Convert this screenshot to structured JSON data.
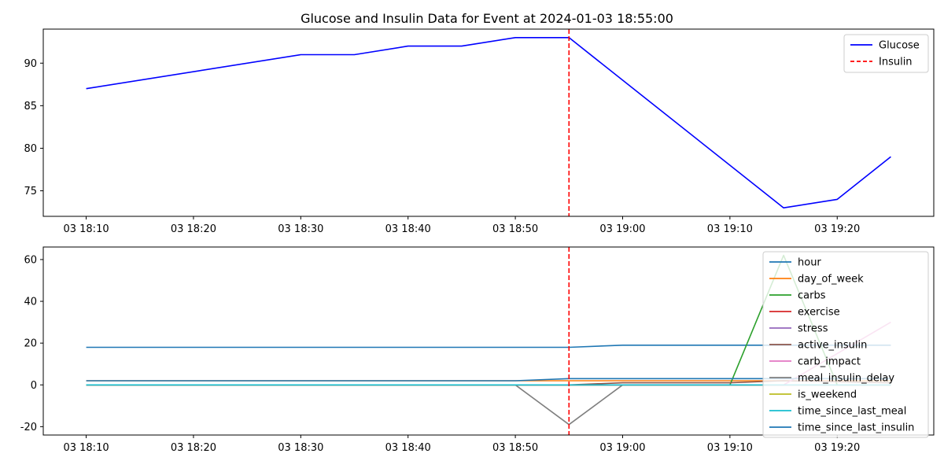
{
  "chart_data": [
    {
      "type": "line",
      "title": "Glucose and Insulin Data for Event at 2024-01-03 18:55:00",
      "xlabel": "",
      "ylabel": "",
      "x": [
        "18:10",
        "18:15",
        "18:20",
        "18:25",
        "18:30",
        "18:35",
        "18:40",
        "18:45",
        "18:50",
        "18:55",
        "19:00",
        "19:05",
        "19:10",
        "19:15",
        "19:20",
        "19:25"
      ],
      "x_tick_labels": [
        "03 18:10",
        "03 18:20",
        "03 18:30",
        "03 18:40",
        "03 18:50",
        "03 19:00",
        "03 19:10",
        "03 19:20"
      ],
      "x_tick_values": [
        "18:10",
        "18:20",
        "18:30",
        "18:40",
        "18:50",
        "19:00",
        "19:10",
        "19:20"
      ],
      "y_ticks": [
        75,
        80,
        85,
        90
      ],
      "xlim": [
        "18:06",
        "19:29"
      ],
      "ylim": [
        72,
        94
      ],
      "series": [
        {
          "name": "Glucose",
          "color": "#0000ff",
          "style": "solid",
          "points": [
            [
              "18:10",
              87
            ],
            [
              "18:30",
              91
            ],
            [
              "18:35",
              91
            ],
            [
              "18:40",
              92
            ],
            [
              "18:45",
              92
            ],
            [
              "18:50",
              93
            ],
            [
              "18:55",
              93
            ],
            [
              "19:15",
              73
            ],
            [
              "19:20",
              74
            ],
            [
              "19:25",
              79
            ]
          ]
        }
      ],
      "vline": {
        "name": "Insulin",
        "x": "18:55",
        "color": "#ff0000",
        "style": "dashed"
      },
      "legend": {
        "placement": "top-right",
        "entries": [
          "Glucose",
          "Insulin"
        ]
      }
    },
    {
      "type": "line",
      "title": "",
      "xlabel": "",
      "ylabel": "",
      "x_tick_labels": [
        "03 18:10",
        "03 18:20",
        "03 18:30",
        "03 18:40",
        "03 18:50",
        "03 19:00",
        "03 19:10",
        "03 19:20"
      ],
      "x_tick_values": [
        "18:10",
        "18:20",
        "18:30",
        "18:40",
        "18:50",
        "19:00",
        "19:10",
        "19:20"
      ],
      "y_ticks": [
        -20,
        0,
        20,
        40,
        60
      ],
      "xlim": [
        "18:06",
        "19:29"
      ],
      "ylim": [
        -24,
        66
      ],
      "series": [
        {
          "name": "hour",
          "color": "#1f77b4",
          "points": [
            [
              "18:10",
              18
            ],
            [
              "18:55",
              18
            ],
            [
              "19:00",
              19
            ],
            [
              "19:25",
              19
            ]
          ]
        },
        {
          "name": "day_of_week",
          "color": "#ff7f0e",
          "points": [
            [
              "18:10",
              2
            ],
            [
              "19:25",
              2
            ]
          ]
        },
        {
          "name": "carbs",
          "color": "#2ca02c",
          "points": [
            [
              "18:10",
              0
            ],
            [
              "19:10",
              0
            ],
            [
              "19:15",
              62
            ],
            [
              "19:20",
              0
            ],
            [
              "19:25",
              0
            ]
          ]
        },
        {
          "name": "exercise",
          "color": "#d62728",
          "points": [
            [
              "18:10",
              0
            ],
            [
              "19:25",
              0
            ]
          ]
        },
        {
          "name": "stress",
          "color": "#9467bd",
          "points": [
            [
              "18:10",
              0
            ],
            [
              "19:25",
              0
            ]
          ]
        },
        {
          "name": "active_insulin",
          "color": "#8c564b",
          "points": [
            [
              "18:10",
              0
            ],
            [
              "18:55",
              0
            ],
            [
              "19:00",
              1
            ],
            [
              "19:10",
              1
            ],
            [
              "19:15",
              2
            ],
            [
              "19:25",
              1
            ]
          ]
        },
        {
          "name": "carb_impact",
          "color": "#e377c2",
          "points": [
            [
              "18:10",
              0
            ],
            [
              "19:10",
              0
            ],
            [
              "19:15",
              0
            ],
            [
              "19:25",
              30
            ]
          ]
        },
        {
          "name": "meal_insulin_delay",
          "color": "#7f7f7f",
          "points": [
            [
              "18:10",
              0
            ],
            [
              "18:50",
              0
            ],
            [
              "18:55",
              -19
            ],
            [
              "19:00",
              0
            ],
            [
              "19:25",
              0
            ]
          ]
        },
        {
          "name": "is_weekend",
          "color": "#bcbd22",
          "points": [
            [
              "18:10",
              0
            ],
            [
              "19:25",
              0
            ]
          ]
        },
        {
          "name": "time_since_last_meal",
          "color": "#17becf",
          "points": [
            [
              "18:10",
              0
            ],
            [
              "19:25",
              0
            ]
          ]
        },
        {
          "name": "time_since_last_insulin",
          "color": "#1f77b4",
          "points": [
            [
              "18:10",
              2
            ],
            [
              "18:50",
              2
            ],
            [
              "18:55",
              3
            ],
            [
              "19:25",
              3
            ]
          ]
        }
      ],
      "vline": {
        "x": "18:55",
        "color": "#ff0000",
        "style": "dashed"
      },
      "legend": {
        "placement": "top-right",
        "entries": [
          "hour",
          "day_of_week",
          "carbs",
          "exercise",
          "stress",
          "active_insulin",
          "carb_impact",
          "meal_insulin_delay",
          "is_weekend",
          "time_since_last_meal",
          "time_since_last_insulin"
        ]
      }
    }
  ]
}
